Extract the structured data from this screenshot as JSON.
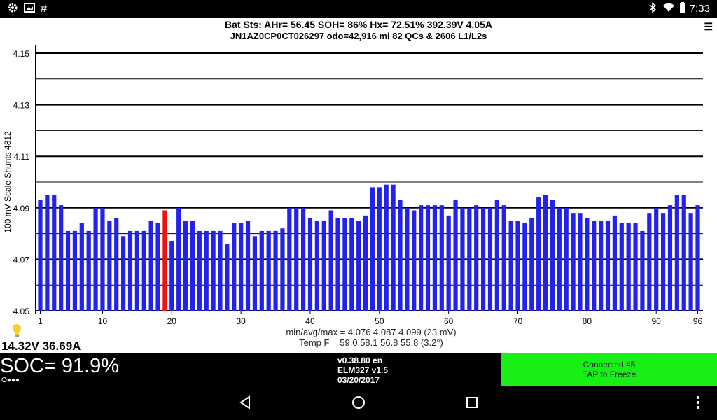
{
  "status_bar": {
    "time": "7:33",
    "left_icons": [
      "gear-icon",
      "image-icon",
      "hash-icon"
    ],
    "right_icons": [
      "bluetooth-icon",
      "wifi-icon",
      "battery-icon"
    ]
  },
  "header": {
    "line1": "Bat Sts:  AHr= 56.45  SOH= 86%   Hx= 72.51%   392.39V 4.05A",
    "line2": "JN1AZ0CP0CT026297 odo=42,916 mi  82 QCs & 2606 L1/L2s",
    "menu_icon": "☰"
  },
  "chart_data": {
    "type": "bar",
    "ylabel": "100 mV Scale   Shunts 4812",
    "ylim": [
      4.05,
      4.15
    ],
    "y_ticks": [
      4.05,
      4.07,
      4.09,
      4.11,
      4.13,
      4.15
    ],
    "x_ticks": [
      1,
      10,
      20,
      30,
      40,
      50,
      60,
      70,
      80,
      90,
      96
    ],
    "highlight_cell": 19,
    "bar_color": "#2222ee",
    "highlight_color": "#ee1111",
    "values": [
      4.093,
      4.095,
      4.095,
      4.091,
      4.081,
      4.081,
      4.084,
      4.081,
      4.09,
      4.09,
      4.085,
      4.086,
      4.079,
      4.081,
      4.081,
      4.081,
      4.085,
      4.084,
      4.089,
      4.077,
      4.09,
      4.085,
      4.085,
      4.081,
      4.081,
      4.081,
      4.081,
      4.076,
      4.084,
      4.084,
      4.085,
      4.079,
      4.081,
      4.081,
      4.081,
      4.082,
      4.09,
      4.09,
      4.09,
      4.086,
      4.085,
      4.085,
      4.089,
      4.086,
      4.086,
      4.086,
      4.085,
      4.087,
      4.098,
      4.098,
      4.099,
      4.099,
      4.093,
      4.09,
      4.089,
      4.091,
      4.091,
      4.091,
      4.091,
      4.087,
      4.093,
      4.09,
      4.09,
      4.091,
      4.09,
      4.09,
      4.093,
      4.091,
      4.085,
      4.085,
      4.084,
      4.086,
      4.094,
      4.095,
      4.093,
      4.09,
      4.09,
      4.088,
      4.088,
      4.086,
      4.085,
      4.085,
      4.085,
      4.087,
      4.084,
      4.084,
      4.084,
      4.081,
      4.088,
      4.09,
      4.088,
      4.091,
      4.095,
      4.095,
      4.088,
      4.091
    ]
  },
  "stats": {
    "minmax": "min/avg/max = 4.076 4.087 4.099  (23 mV)",
    "temp": "Temp F = 59.0  58.1  56.8  55.8  (3.2°)"
  },
  "readouts": {
    "volts_amps": "14.32V 36.69A",
    "bulb_icon": "lightbulb-icon"
  },
  "bottom": {
    "soc": "SOC= 91.9%",
    "soc_dots": "O●●●",
    "version": "v0.38.80 en",
    "adapter": "ELM327 v1.5",
    "date": "03/20/2017",
    "connected": "Connected 45",
    "tap": "TAP to Freeze",
    "connected_color": "#17ef17"
  },
  "nav": {
    "buttons": [
      "back-icon",
      "home-icon",
      "recents-icon",
      "overflow-menu-icon"
    ]
  }
}
